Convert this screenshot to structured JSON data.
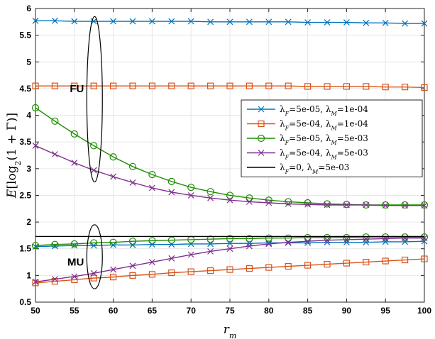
{
  "chart_data": {
    "type": "line",
    "xlabel": "r_m",
    "ylabel": "E[log_2(1+Γ)]",
    "xlim": [
      50,
      100
    ],
    "ylim": [
      0.5,
      6
    ],
    "x_ticks": [
      50,
      55,
      60,
      65,
      70,
      75,
      80,
      85,
      90,
      95,
      100
    ],
    "y_ticks": [
      0.5,
      1,
      1.5,
      2,
      2.5,
      3,
      3.5,
      4,
      4.5,
      5,
      5.5,
      6
    ],
    "grid": true,
    "legend_position": "right",
    "x": [
      50,
      52.5,
      55,
      57.5,
      60,
      62.5,
      65,
      67.5,
      70,
      72.5,
      75,
      77.5,
      80,
      82.5,
      85,
      87.5,
      90,
      92.5,
      95,
      97.5,
      100
    ],
    "series": [
      {
        "group": "FU",
        "legend": {
          "lf": "5e-05",
          "lm": "1e-04"
        },
        "color": "#0072BD",
        "marker": "x",
        "values": [
          5.77,
          5.77,
          5.76,
          5.76,
          5.76,
          5.76,
          5.76,
          5.76,
          5.76,
          5.75,
          5.75,
          5.75,
          5.75,
          5.75,
          5.74,
          5.74,
          5.74,
          5.73,
          5.73,
          5.72,
          5.72
        ]
      },
      {
        "group": "FU",
        "legend": {
          "lf": "5e-04",
          "lm": "1e-04"
        },
        "color": "#D95319",
        "marker": "square",
        "values": [
          4.55,
          4.55,
          4.55,
          4.55,
          4.55,
          4.55,
          4.55,
          4.55,
          4.55,
          4.55,
          4.55,
          4.55,
          4.55,
          4.55,
          4.54,
          4.54,
          4.54,
          4.54,
          4.53,
          4.53,
          4.52
        ]
      },
      {
        "group": "FU",
        "legend": {
          "lf": "5e-05",
          "lm": "5e-03"
        },
        "color": "#1E8C00",
        "marker": "circle",
        "values": [
          4.14,
          3.89,
          3.65,
          3.43,
          3.22,
          3.04,
          2.89,
          2.76,
          2.65,
          2.57,
          2.5,
          2.45,
          2.41,
          2.38,
          2.36,
          2.34,
          2.33,
          2.32,
          2.32,
          2.32,
          2.32
        ]
      },
      {
        "group": "FU",
        "legend": {
          "lf": "5e-04",
          "lm": "5e-03"
        },
        "color": "#7E2F8E",
        "marker": "x",
        "values": [
          3.43,
          3.27,
          3.11,
          2.97,
          2.85,
          2.74,
          2.64,
          2.56,
          2.5,
          2.45,
          2.41,
          2.38,
          2.36,
          2.34,
          2.33,
          2.32,
          2.32,
          2.32,
          2.31,
          2.31,
          2.31
        ]
      },
      {
        "group": "MU",
        "legend": {
          "lf": "5e-05",
          "lm": "1e-04"
        },
        "color": "#0072BD",
        "marker": "x",
        "values": [
          1.54,
          1.55,
          1.56,
          1.56,
          1.57,
          1.57,
          1.58,
          1.58,
          1.59,
          1.59,
          1.6,
          1.6,
          1.61,
          1.61,
          1.61,
          1.62,
          1.62,
          1.62,
          1.63,
          1.63,
          1.64
        ]
      },
      {
        "group": "MU",
        "legend": {
          "lf": "5e-04",
          "lm": "1e-04"
        },
        "color": "#D95319",
        "marker": "square",
        "values": [
          0.86,
          0.89,
          0.92,
          0.95,
          0.97,
          1.0,
          1.02,
          1.05,
          1.07,
          1.09,
          1.11,
          1.13,
          1.15,
          1.17,
          1.19,
          1.21,
          1.23,
          1.25,
          1.27,
          1.29,
          1.31
        ]
      },
      {
        "group": "MU",
        "legend": {
          "lf": "5e-05",
          "lm": "5e-03"
        },
        "color": "#1E8C00",
        "marker": "circle",
        "values": [
          1.56,
          1.58,
          1.59,
          1.61,
          1.62,
          1.64,
          1.65,
          1.66,
          1.67,
          1.68,
          1.69,
          1.69,
          1.7,
          1.7,
          1.71,
          1.71,
          1.71,
          1.72,
          1.72,
          1.72,
          1.72
        ]
      },
      {
        "group": "MU",
        "legend": {
          "lf": "5e-04",
          "lm": "5e-03"
        },
        "color": "#7E2F8E",
        "marker": "x",
        "values": [
          0.88,
          0.93,
          0.98,
          1.04,
          1.11,
          1.18,
          1.25,
          1.32,
          1.39,
          1.45,
          1.5,
          1.55,
          1.59,
          1.62,
          1.64,
          1.66,
          1.67,
          1.68,
          1.69,
          1.7,
          1.7
        ]
      },
      {
        "group": "MU",
        "legend": {
          "lf": "0",
          "lm": "5e-03"
        },
        "color": "#000000",
        "marker": "none",
        "values": [
          1.73,
          1.73,
          1.73,
          1.73,
          1.73,
          1.73,
          1.73,
          1.73,
          1.73,
          1.73,
          1.73,
          1.73,
          1.73,
          1.73,
          1.73,
          1.73,
          1.73,
          1.73,
          1.73,
          1.73,
          1.73
        ]
      }
    ],
    "legend_entries": [
      {
        "lf": "5e-05",
        "lm": "1e-04",
        "color": "#0072BD",
        "marker": "x"
      },
      {
        "lf": "5e-04",
        "lm": "1e-04",
        "color": "#D95319",
        "marker": "square"
      },
      {
        "lf": "5e-05",
        "lm": "5e-03",
        "color": "#1E8C00",
        "marker": "circle"
      },
      {
        "lf": "5e-04",
        "lm": "5e-03",
        "color": "#7E2F8E",
        "marker": "x"
      },
      {
        "lf": "0",
        "lm": "5e-03",
        "color": "#000000",
        "marker": "none"
      }
    ],
    "annotations": [
      {
        "text": "FU",
        "x": 57.6,
        "y": 4.5,
        "ellipse_x": [
          56.6,
          58.6
        ],
        "ellipse_y": [
          2.75,
          5.85
        ]
      },
      {
        "text": "MU",
        "x": 57.6,
        "y": 1.25,
        "ellipse_x": [
          56.6,
          58.6
        ],
        "ellipse_y": [
          0.75,
          1.95
        ]
      }
    ]
  }
}
